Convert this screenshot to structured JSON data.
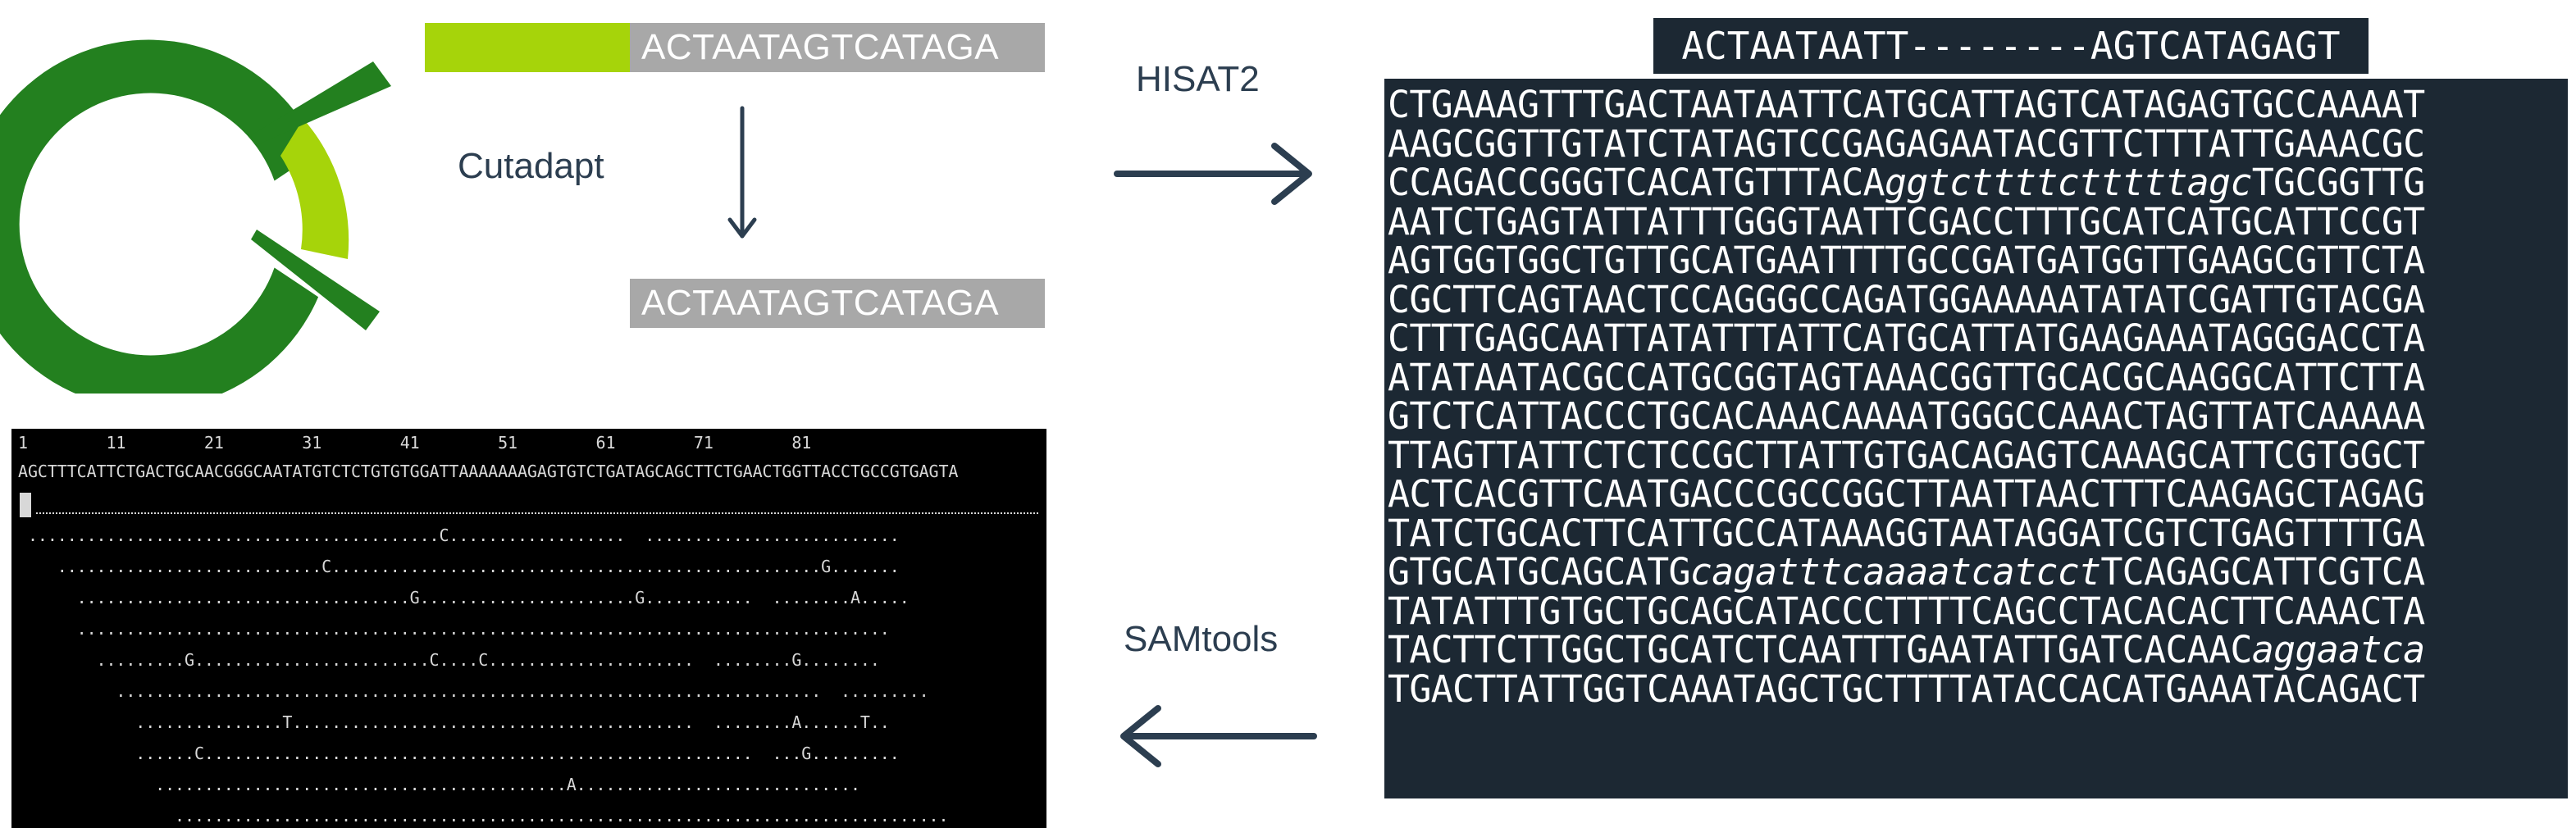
{
  "logo": {
    "colors": {
      "dark_green": "#23801f",
      "light_green": "#a6d40a"
    }
  },
  "cutadapt": {
    "label": "Cutadapt",
    "untrimmed_read": "ACTAATAGTCATAGA",
    "trimmed_read": "ACTAATAGTCATAGA",
    "colors": {
      "adapter": "#a6d40a",
      "read": "#a8a8a8"
    }
  },
  "hisat2": {
    "label": "HISAT2"
  },
  "samtools": {
    "label": "SAMtools"
  },
  "alignment": {
    "query": "ACTAATAATT--------AGTCATAGAGT",
    "genome_lines": [
      [
        "CTGAAAGTTTGACTAATAATTCATGCATTAGTCATAGAGTGCCAAAAT"
      ],
      [
        "AAGCGGTTGTATCTATAGTCCGAGAGAATACGTTCTTTATTGAAACGC"
      ],
      [
        "CCAGACCGGGTCACATGTTTACA",
        {
          "i": "ggtcttttctttttagc"
        },
        "TGCGGTTG"
      ],
      [
        "AATCTGAGTATTATTTGGGTAATTCGACCTTTGCATCATGCATTCCGT"
      ],
      [
        "AGTGGTGGCTGTTGCATGAATTTTGCCGATGATGGTTGAAGCGTTCTA"
      ],
      [
        "CGCTTCAGTAACTCCAGGGCCAGATGGAAAAATATATCGATTGTACGA"
      ],
      [
        "CTTTGAGCAATTATATTTATTCATGCATTATGAAGAAATAGGGACCTA"
      ],
      [
        "ATATAATACGCCATGCGGTAGTAAACGGTTGCACGCAAGGCATTCTTA"
      ],
      [
        "GTCTCATTACCCTGCACAAACAAAATGGGCCAAACTAGTTATCAAAAA"
      ],
      [
        "TTAGTTATTCTCTCCGCTTATTGTGACAGAGTCAAAGCATTCGTGGCT"
      ],
      [
        "ACTCACGTTCAATGACCCGCCGGCTTAATTAACTTTCAAGAGCTAGAG"
      ],
      [
        "TATCTGCACTTCATTGCCATAAAGGTAATAGGATCGTCTGAGTTTTGA"
      ],
      [
        "GTGCATGCAGCATG",
        {
          "i": "cagatttcaaaatcatcct"
        },
        "TCAGAGCATTCGTCA"
      ],
      [
        "TATATTTGTGCTGCAGCATACCCTTTTCAGCCTACACACTTCAAACTA"
      ],
      [
        "TACTTCTTGGCTGCATCTCAATTTGAATATTGATCACAAC",
        {
          "i": "aggaatca"
        }
      ],
      [
        "TGACTTATTGGTCAAATAGCTGCTTTTATACCACATGAAATACAGACT"
      ]
    ]
  },
  "pileup": {
    "ruler": "1        11        21        31        41        51        61        71        81",
    "reference": "AGCTTTCATTCTGACTGCAACGGGCAATATGTCTCTGTGTGGATTAAAAAAAGAGTGTCTGATAGCAGCTTCTGAACTGGTTACCTGCCGTGAGTA",
    "reads": [
      " ..........................................C..................  ..........................",
      "    ...........................C..................................................G.......",
      "      ..................................G......................G...........  ........A.....",
      "      ...................................................................................",
      "        .........G........................C....C.....................  ........G........",
      "          ........................................................................  .........",
      "            ...............T.........................................  ........A......T..",
      "            ......C........................................................  ...G.........",
      "              ..........................................A.............................",
      "                ..............................................................................."
    ]
  }
}
